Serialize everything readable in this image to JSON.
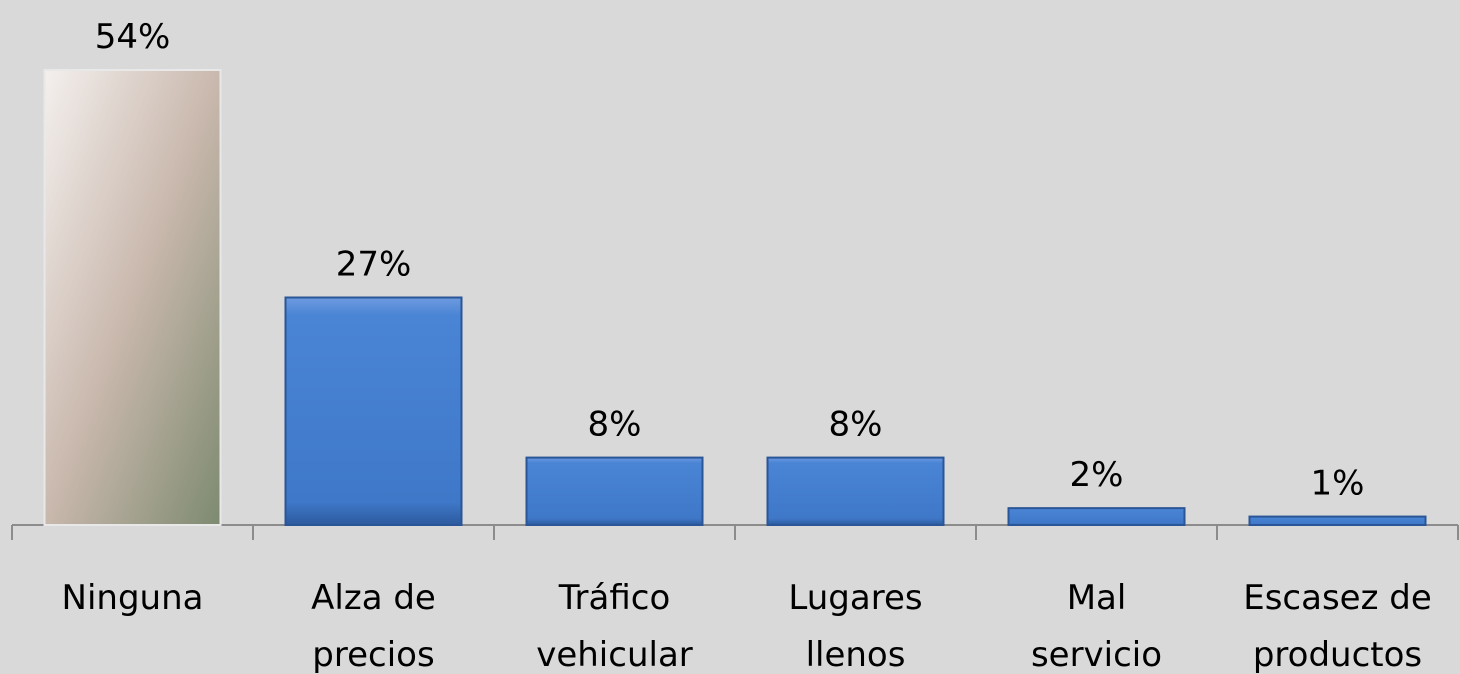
{
  "chart_data": {
    "type": "bar",
    "categories": [
      "Ninguna",
      "Alza de\nprecios",
      "Tráfico\nvehicular",
      "Lugares\nllenos",
      "Mal\nservicio",
      "Escasez de\nproductos"
    ],
    "values": [
      54,
      27,
      8,
      8,
      2,
      1
    ],
    "value_labels": [
      "54%",
      "27%",
      "8%",
      "8%",
      "2%",
      "1%"
    ],
    "color": "#3f78c8"
  }
}
